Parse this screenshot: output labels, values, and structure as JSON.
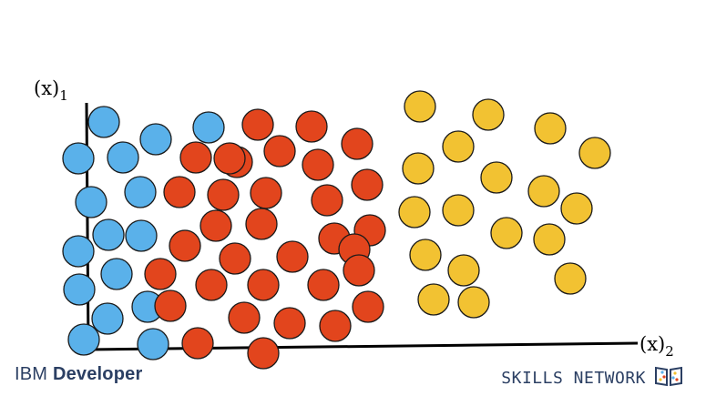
{
  "axes": {
    "y_label": "(x)",
    "y_sub": "1",
    "x_label": "(x)",
    "x_sub": "2"
  },
  "clusters": [
    {
      "name": "blue",
      "color": "#5AB1EA",
      "count": 19
    },
    {
      "name": "red",
      "color": "#E2451D",
      "count": 38
    },
    {
      "name": "yellow",
      "color": "#F2C232",
      "count": 22
    }
  ],
  "footer": {
    "brand_left_1": "IBM",
    "brand_left_2": "Developer",
    "brand_right": "SKILLS NETWORK",
    "brand_color": "#2b3f63",
    "logo_icon": "skills-network-book-icon"
  }
}
